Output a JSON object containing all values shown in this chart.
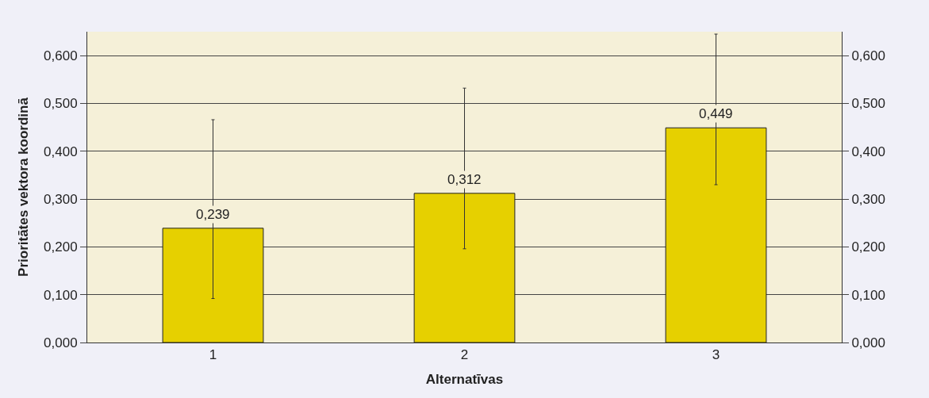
{
  "chart_data": {
    "type": "bar",
    "xlabel": "Alternatīvas",
    "ylabel": "Prioritātes vektora koordinā",
    "categories": [
      "1",
      "2",
      "3"
    ],
    "values": [
      0.239,
      0.312,
      0.449
    ],
    "value_labels": [
      "0,239",
      "0,312",
      "0,449"
    ],
    "errors": [
      [
        0.092,
        0.466
      ],
      [
        0.196,
        0.532
      ],
      [
        0.33,
        0.645
      ]
    ],
    "color": "#e6d000",
    "ylim": [
      0,
      0.65
    ],
    "yticks": [
      {
        "value": 0,
        "label": "0,000"
      },
      {
        "value": 0.1,
        "label": "0,100"
      },
      {
        "value": 0.2,
        "label": "0,200"
      },
      {
        "value": 0.3,
        "label": "0,300"
      },
      {
        "value": 0.4,
        "label": "0,400"
      },
      {
        "value": 0.5,
        "label": "0,500"
      },
      {
        "value": 0.6,
        "label": "0,600"
      }
    ],
    "y2lim": [
      0,
      0.65
    ],
    "y2ticks": [
      {
        "value": 0,
        "label": "0,000"
      },
      {
        "value": 0.1,
        "label": "0,100"
      },
      {
        "value": 0.2,
        "label": "0,200"
      },
      {
        "value": 0.3,
        "label": "0,300"
      },
      {
        "value": 0.4,
        "label": "0,400"
      },
      {
        "value": 0.5,
        "label": "0,500"
      },
      {
        "value": 0.6,
        "label": "0,600"
      }
    ],
    "grid": "y"
  }
}
